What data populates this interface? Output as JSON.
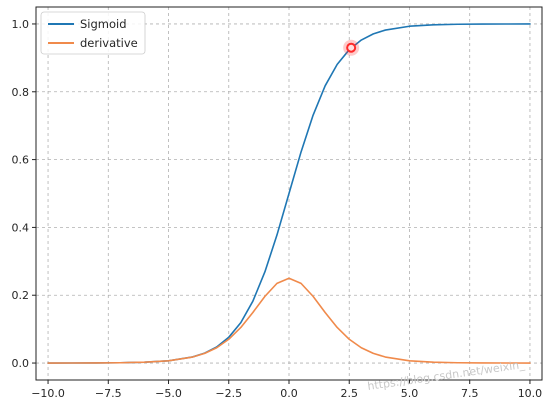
{
  "chart_data": {
    "type": "line",
    "xlim": [
      -10.5,
      10.5
    ],
    "ylim": [
      -0.05,
      1.05
    ],
    "xticks": [
      -10.0,
      -7.5,
      -5.0,
      -2.5,
      0.0,
      2.5,
      5.0,
      7.5,
      10.0
    ],
    "xtick_labels": [
      "−10.0",
      "−7.5",
      "−5.0",
      "−2.5",
      "0.0",
      "2.5",
      "5.0",
      "7.5",
      "10.0"
    ],
    "yticks": [
      0.0,
      0.2,
      0.4,
      0.6,
      0.8,
      1.0
    ],
    "ytick_labels": [
      "0.0",
      "0.2",
      "0.4",
      "0.6",
      "0.8",
      "1.0"
    ],
    "grid": true,
    "legend_position": "top-left",
    "series": [
      {
        "name": "Sigmoid",
        "color": "#1f77b4",
        "x": [
          -10,
          -9,
          -8,
          -7,
          -6,
          -5,
          -4,
          -3.5,
          -3,
          -2.5,
          -2,
          -1.5,
          -1,
          -0.5,
          0,
          0.5,
          1,
          1.5,
          2,
          2.5,
          3,
          3.5,
          4,
          5,
          6,
          7,
          8,
          9,
          10
        ],
        "y": [
          4.54e-05,
          0.000123,
          0.000335,
          0.000911,
          0.00247,
          0.00669,
          0.018,
          0.0293,
          0.0474,
          0.0759,
          0.1192,
          0.1824,
          0.2689,
          0.3775,
          0.5,
          0.6225,
          0.7311,
          0.8176,
          0.8808,
          0.9241,
          0.9526,
          0.9707,
          0.982,
          0.9933,
          0.9975,
          0.9991,
          0.99966,
          0.99988,
          0.99995
        ]
      },
      {
        "name": "derivative",
        "color": "#f08a4b",
        "x": [
          -10,
          -9,
          -8,
          -7,
          -6,
          -5,
          -4,
          -3.5,
          -3,
          -2.5,
          -2,
          -1.5,
          -1,
          -0.5,
          0,
          0.5,
          1,
          1.5,
          2,
          2.5,
          3,
          3.5,
          4,
          5,
          6,
          7,
          8,
          9,
          10
        ],
        "y": [
          4.54e-05,
          0.000123,
          0.000335,
          0.00091,
          0.00247,
          0.00665,
          0.0177,
          0.0285,
          0.0452,
          0.0701,
          0.105,
          0.1491,
          0.1966,
          0.235,
          0.25,
          0.235,
          0.1966,
          0.1491,
          0.105,
          0.0701,
          0.0452,
          0.0285,
          0.0177,
          0.00665,
          0.00247,
          0.00091,
          0.000335,
          0.000123,
          4.54e-05
        ]
      }
    ],
    "highlight_marker": {
      "x": 2.58,
      "y": 0.93,
      "color": "#ff2a2a"
    }
  },
  "watermark": "https://blog.csdn.net/weixin_"
}
